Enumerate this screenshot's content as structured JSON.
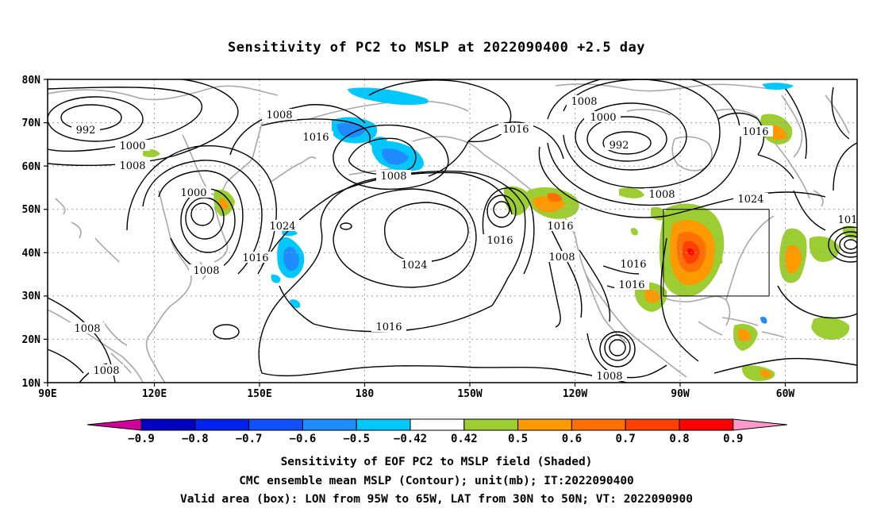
{
  "title": "Sensitivity of PC2 to MSLP at 2022090400 +2.5 day",
  "lat_labels": [
    "80N",
    "70N",
    "60N",
    "50N",
    "40N",
    "30N",
    "20N",
    "10N"
  ],
  "lon_labels": [
    "90E",
    "120E",
    "150E",
    "180",
    "150W",
    "120W",
    "90W",
    "60W"
  ],
  "colorbar": {
    "labels": [
      "-0.9",
      "-0.8",
      "-0.7",
      "-0.6",
      "-0.5",
      "-0.42",
      "0.42",
      "0.5",
      "0.6",
      "0.7",
      "0.8",
      "0.9"
    ],
    "colors": [
      "#d0009a",
      "#0000c0",
      "#0022ee",
      "#1050ff",
      "#1e8cff",
      "#00c8ff",
      "#ffffff",
      "#9ccd32",
      "#ff9900",
      "#ff7000",
      "#ff4000",
      "#ff0000",
      "#ff99cc"
    ]
  },
  "contour_labels": [
    "992",
    "1000",
    "1008",
    "1000",
    "1008",
    "1016",
    "1008",
    "1000",
    "1008",
    "1024",
    "1016",
    "1008",
    "1008",
    "1008",
    "1024",
    "1016",
    "1016",
    "1016",
    "1008",
    "1016",
    "1016",
    "1016",
    "1008",
    "1008",
    "1000",
    "992",
    "1016",
    "1008",
    "1024",
    "101"
  ],
  "valid_box": {
    "lon_min": -95,
    "lon_max": -65,
    "lat_min": 30,
    "lat_max": 50
  },
  "captions": {
    "line1": "Sensitivity of EOF PC2 to MSLP field (Shaded)",
    "line2": "CMC ensemble mean MSLP (Contour); unit(mb); IT:2022090400",
    "line3": "Valid area (box): LON from 95W to 65W, LAT from 30N to 50N; VT: 2022090900"
  }
}
